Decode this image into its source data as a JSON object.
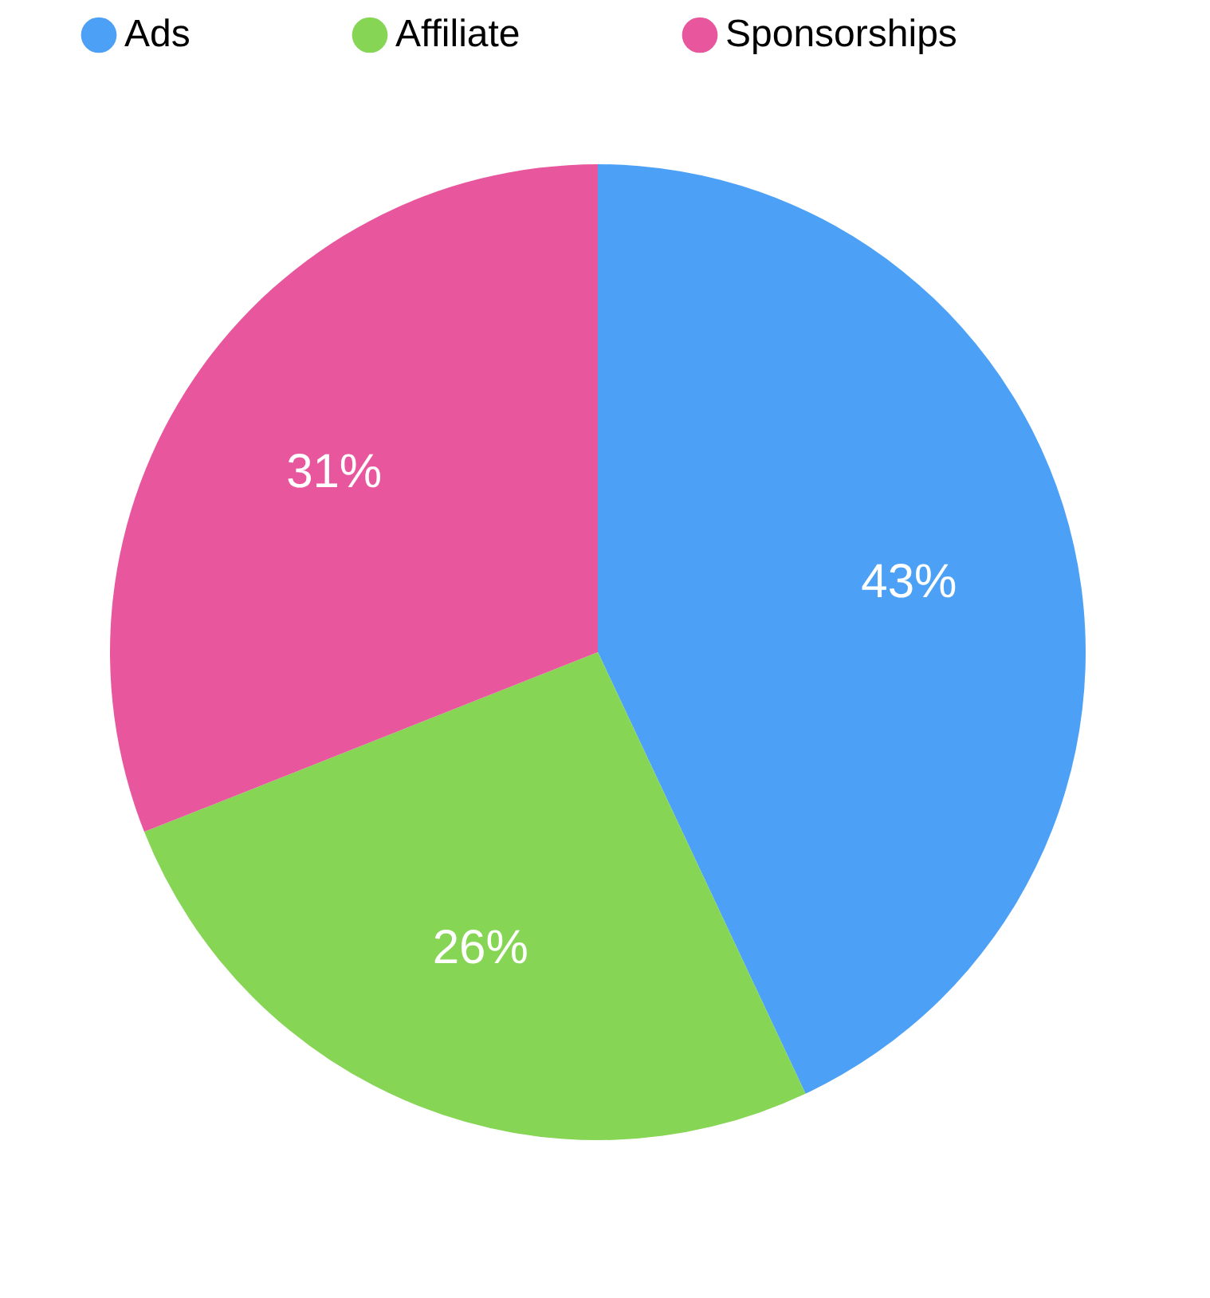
{
  "chart_data": {
    "type": "pie",
    "categories": [
      "Ads",
      "Affiliate",
      "Sponsorships"
    ],
    "values": [
      43,
      26,
      31
    ],
    "colors": [
      "#4ca0f6",
      "#86d554",
      "#e8579d"
    ],
    "value_labels": [
      "43%",
      "26%",
      "31%"
    ],
    "legend": "top"
  }
}
